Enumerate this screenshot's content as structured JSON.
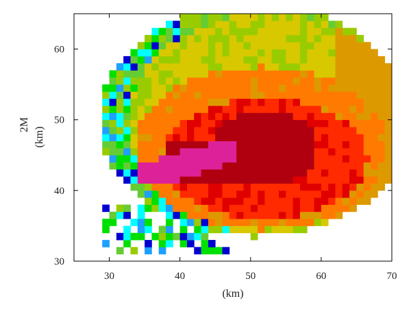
{
  "chart_data": {
    "type": "heatmap",
    "title": "",
    "xlabel": "(km)",
    "ylabel_line1": "2M",
    "ylabel_line2": "(km)",
    "xlim": [
      25,
      70
    ],
    "ylim": [
      30,
      65
    ],
    "x_ticks": [
      30,
      40,
      50,
      60,
      70
    ],
    "y_ticks": [
      30,
      40,
      50,
      60
    ],
    "cell_size_km": 1,
    "palette": [
      "#ffffff",
      "#00ffff",
      "#1ea0ff",
      "#0000d0",
      "#00e000",
      "#66cc33",
      "#99cc00",
      "#d8c800",
      "#dd9900",
      "#ff7a00",
      "#ff2a00",
      "#e00000",
      "#b00010",
      "#dd2299"
    ],
    "levels": [
      {
        "name": "outer",
        "value": 1,
        "cx": 50.5,
        "cy": 50.0,
        "rx": 22.0,
        "ry": 16.5
      },
      {
        "name": "yellow",
        "value": 2,
        "cx": 52.5,
        "cy": 49.5,
        "rx": 20.0,
        "ry": 15.5
      },
      {
        "name": "orange",
        "value": 3,
        "cx": 51.5,
        "cy": 46.0,
        "rx": 18.0,
        "ry": 11.5
      },
      {
        "name": "red",
        "value": 4,
        "cx": 52.0,
        "cy": 44.5,
        "rx": 14.5,
        "ry": 8.5
      },
      {
        "name": "dark-red",
        "value": 5,
        "cx": 52.0,
        "cy": 46.0,
        "rx": 7.5,
        "ry": 5.5
      },
      {
        "name": "pink-core",
        "value": 6,
        "x0": 34.5,
        "y0": 41.5,
        "x1": 48.0,
        "y1": 46.5
      }
    ]
  }
}
